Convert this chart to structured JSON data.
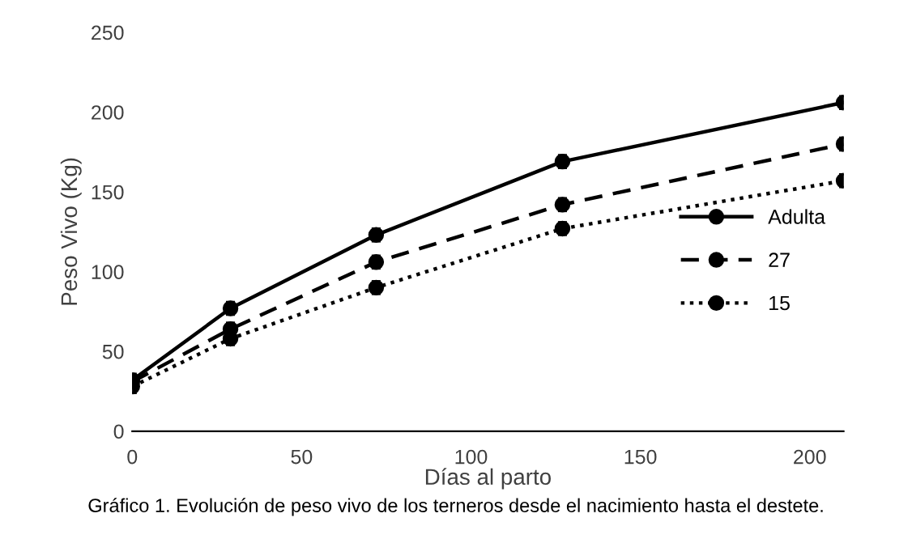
{
  "chart_data": {
    "type": "line",
    "xlabel": "Días al parto",
    "ylabel": "Peso Vivo (Kg)",
    "x": [
      0,
      29,
      72,
      127,
      210
    ],
    "series": [
      {
        "name": "Adulta",
        "color": "#000000",
        "line_style": "solid",
        "values": [
          32,
          77,
          123,
          169,
          206
        ],
        "errors": [
          4,
          4,
          4,
          4,
          4
        ]
      },
      {
        "name": "27",
        "color": "#000000",
        "line_style": "dashed",
        "values": [
          31,
          64,
          106,
          142,
          180
        ],
        "errors": [
          4,
          4,
          4,
          4,
          4
        ]
      },
      {
        "name": "15",
        "color": "#000000",
        "line_style": "dotted",
        "values": [
          28,
          58,
          90,
          127,
          157
        ],
        "errors": [
          4,
          4,
          4,
          4,
          4
        ]
      }
    ],
    "marker": "circle",
    "xlim": [
      0,
      210
    ],
    "ylim": [
      0,
      250
    ],
    "xticks": [
      0,
      50,
      100,
      150,
      200
    ],
    "yticks": [
      0,
      50,
      100,
      150,
      200,
      250
    ],
    "grid": false,
    "legend": "right",
    "annotations": [
      "Gráfico 1. Evolución de peso vivo de los terneros desde el nacimiento hasta el destete."
    ]
  }
}
